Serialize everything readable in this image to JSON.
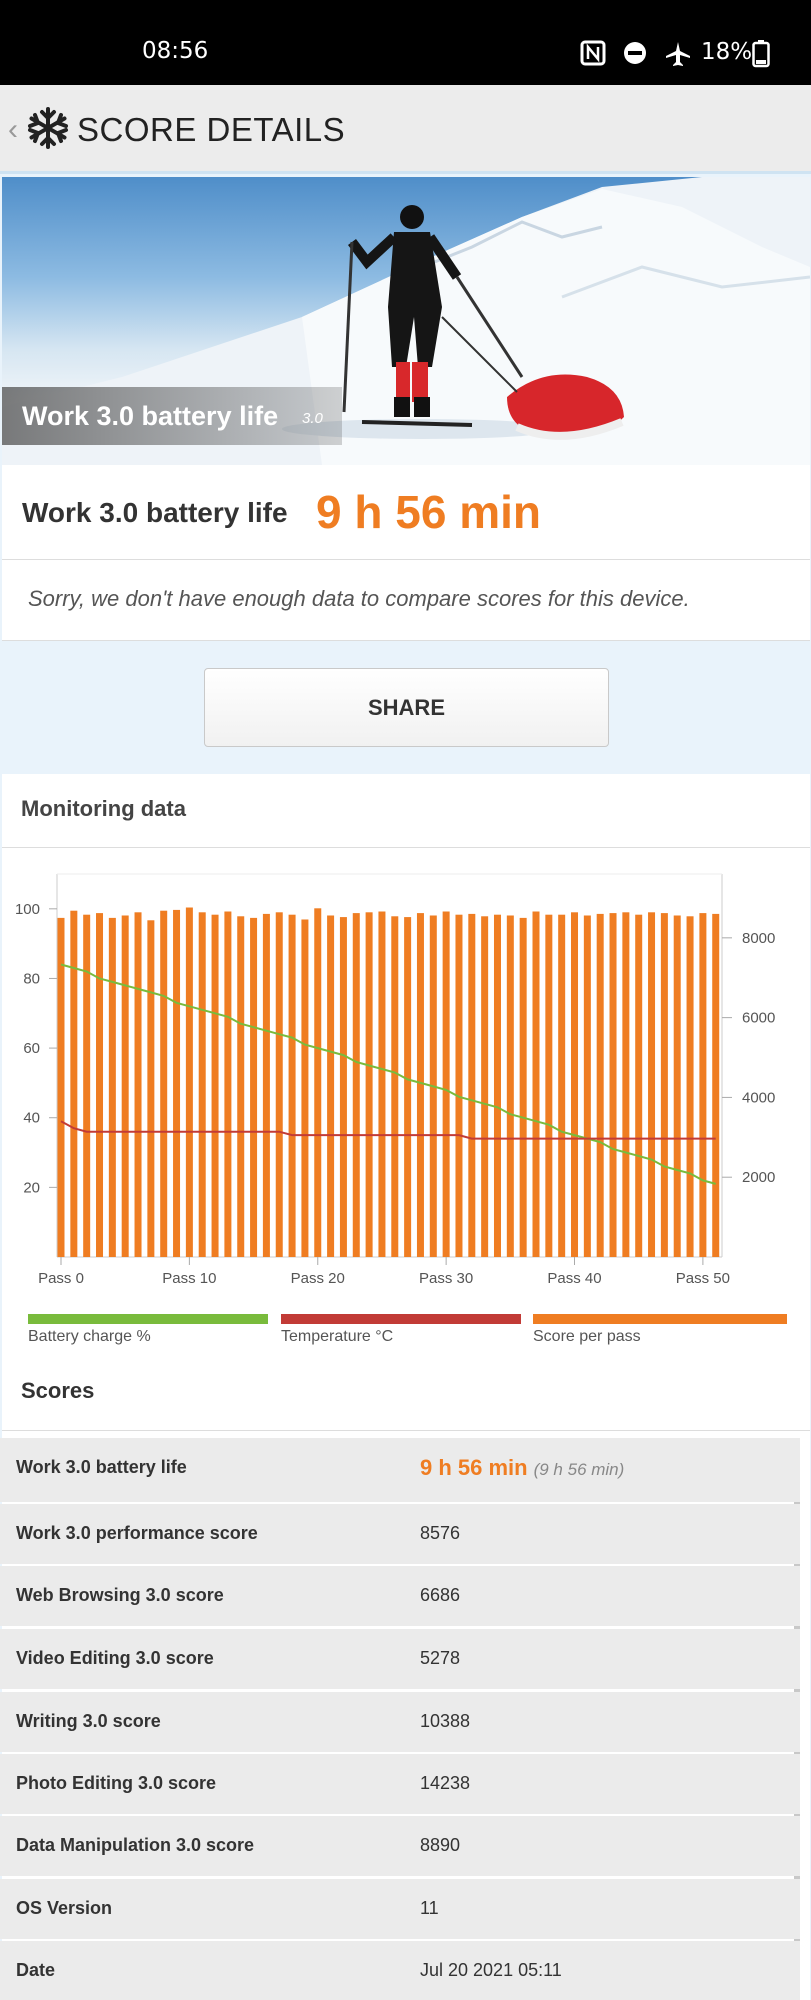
{
  "status_bar": {
    "time": "08:56",
    "icons": [
      "nfc-icon",
      "do-not-disturb-icon",
      "airplane-icon"
    ],
    "battery": "18%"
  },
  "header": {
    "title": "SCORE DETAILS",
    "logo_icon": "snowflake-icon"
  },
  "hero": {
    "label": "Work 3.0 battery life",
    "version": "3.0"
  },
  "result": {
    "name": "Work 3.0 battery life",
    "value": "9 h 56 min"
  },
  "note": "Sorry, we don't have enough data to compare scores for this device.",
  "share_label": "SHARE",
  "monitoring": {
    "title": "Monitoring data",
    "legend": [
      {
        "label": "Battery charge %",
        "color": "#79bb3c"
      },
      {
        "label": "Temperature °C",
        "color": "#c23b36"
      },
      {
        "label": "Score per pass",
        "color": "#ef7d22"
      }
    ]
  },
  "chart_data": {
    "type": "bar",
    "left_ylim": [
      0,
      110
    ],
    "left_ticks": [
      "100",
      "80",
      "60",
      "40",
      "20"
    ],
    "right_ylim": [
      0,
      9600
    ],
    "right_ticks": [
      "8000",
      "6000",
      "4000",
      "2000"
    ],
    "x_ticks": [
      "Pass 0",
      "Pass 10",
      "Pass 20",
      "Pass 30",
      "Pass 40",
      "Pass 50"
    ],
    "passes": 52,
    "series": [
      {
        "name": "Score per pass",
        "axis": "right",
        "values": [
          8500,
          8680,
          8580,
          8620,
          8500,
          8560,
          8640,
          8440,
          8680,
          8700,
          8760,
          8640,
          8580,
          8660,
          8540,
          8500,
          8600,
          8640,
          8580,
          8460,
          8740,
          8560,
          8520,
          8620,
          8640,
          8660,
          8540,
          8520,
          8620,
          8560,
          8660,
          8580,
          8600,
          8540,
          8580,
          8560,
          8500,
          8660,
          8580,
          8580,
          8640,
          8560,
          8600,
          8620,
          8640,
          8580,
          8640,
          8620,
          8560,
          8540,
          8620,
          8600
        ]
      },
      {
        "name": "Battery charge %",
        "axis": "left",
        "values": [
          84,
          83,
          82,
          80,
          79,
          78,
          77,
          76,
          75,
          73,
          72,
          71,
          70,
          69,
          67,
          66,
          65,
          64,
          63,
          61,
          60,
          59,
          58,
          56,
          55,
          54,
          53,
          51,
          50,
          49,
          48,
          46,
          45,
          44,
          43,
          41,
          40,
          39,
          38,
          36,
          35,
          34,
          33,
          31,
          30,
          29,
          28,
          26,
          25,
          24,
          22,
          21
        ]
      },
      {
        "name": "Temperature °C",
        "axis": "left",
        "values": [
          39,
          37,
          36,
          36,
          36,
          36,
          36,
          36,
          36,
          36,
          36,
          36,
          36,
          36,
          36,
          36,
          36,
          36,
          35,
          35,
          35,
          35,
          35,
          35,
          35,
          35,
          35,
          35,
          35,
          35,
          35,
          35,
          34,
          34,
          34,
          34,
          34,
          34,
          34,
          34,
          34,
          34,
          34,
          34,
          34,
          34,
          34,
          34,
          34,
          34,
          34,
          34
        ]
      }
    ]
  },
  "scores": {
    "title": "Scores",
    "rows": [
      {
        "label": "Work 3.0 battery life",
        "value": "9 h 56 min",
        "secondary": "(9 h 56 min)"
      },
      {
        "label": "Work 3.0 performance score",
        "value": "8576"
      },
      {
        "label": "Web Browsing 3.0 score",
        "value": "6686"
      },
      {
        "label": "Video Editing 3.0 score",
        "value": "5278"
      },
      {
        "label": "Writing 3.0 score",
        "value": "10388"
      },
      {
        "label": "Photo Editing 3.0 score",
        "value": "14238"
      },
      {
        "label": "Data Manipulation 3.0 score",
        "value": "8890"
      },
      {
        "label": "OS Version",
        "value": "11"
      },
      {
        "label": "Date",
        "value": "Jul 20 2021 05:11"
      }
    ]
  }
}
